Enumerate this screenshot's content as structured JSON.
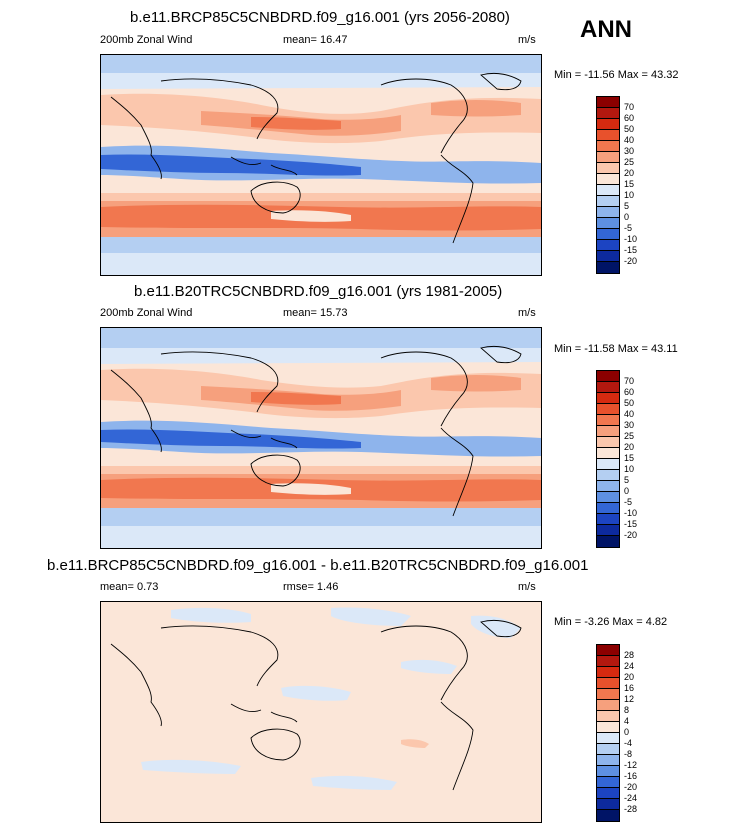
{
  "season": "ANN",
  "panels": [
    {
      "title": "b.e11.BRCP85C5CNBDRD.f09_g16.001 (yrs 2056-2080)",
      "left_label": "200mb Zonal Wind",
      "center_label": "mean=  16.47",
      "units": "m/s",
      "minmax": "Min = -11.56 Max =  43.32",
      "colorbar": {
        "labels": [
          "70",
          "60",
          "50",
          "40",
          "30",
          "25",
          "20",
          "15",
          "10",
          "5",
          "0",
          "-5",
          "-10",
          "-15",
          "-20"
        ],
        "colors": [
          "#8b0000",
          "#b2180f",
          "#d52a10",
          "#e8512c",
          "#f1774f",
          "#f6a07d",
          "#fbc7ad",
          "#fbe6d8",
          "#dbe8f8",
          "#b4cff2",
          "#8eb4ec",
          "#5e90e2",
          "#3366d6",
          "#1c44c2",
          "#0d2a9e",
          "#001466"
        ]
      }
    },
    {
      "title": "b.e11.B20TRC5CNBDRD.f09_g16.001 (yrs 1981-2005)",
      "left_label": "200mb Zonal Wind",
      "center_label": "mean=  15.73",
      "units": "m/s",
      "minmax": "Min = -11.58 Max =  43.11",
      "colorbar": {
        "labels": [
          "70",
          "60",
          "50",
          "40",
          "30",
          "25",
          "20",
          "15",
          "10",
          "5",
          "0",
          "-5",
          "-10",
          "-15",
          "-20"
        ],
        "colors": [
          "#8b0000",
          "#b2180f",
          "#d52a10",
          "#e8512c",
          "#f1774f",
          "#f6a07d",
          "#fbc7ad",
          "#fbe6d8",
          "#dbe8f8",
          "#b4cff2",
          "#8eb4ec",
          "#5e90e2",
          "#3366d6",
          "#1c44c2",
          "#0d2a9e",
          "#001466"
        ]
      }
    },
    {
      "title": "b.e11.BRCP85C5CNBDRD.f09_g16.001 - b.e11.B20TRC5CNBDRD.f09_g16.001",
      "left_label": "mean=   0.73",
      "center_label": "rmse=   1.46",
      "units": "m/s",
      "minmax": "Min = -3.26 Max =  4.82",
      "colorbar": {
        "labels": [
          "28",
          "24",
          "20",
          "16",
          "12",
          "8",
          "4",
          "0",
          "-4",
          "-8",
          "-12",
          "-16",
          "-20",
          "-24",
          "-28"
        ],
        "colors": [
          "#8b0000",
          "#b2180f",
          "#d52a10",
          "#e8512c",
          "#f1774f",
          "#f6a07d",
          "#fbc7ad",
          "#fbe6d8",
          "#dbe8f8",
          "#b4cff2",
          "#8eb4ec",
          "#5e90e2",
          "#3366d6",
          "#1c44c2",
          "#0d2a9e",
          "#001466"
        ]
      }
    }
  ]
}
